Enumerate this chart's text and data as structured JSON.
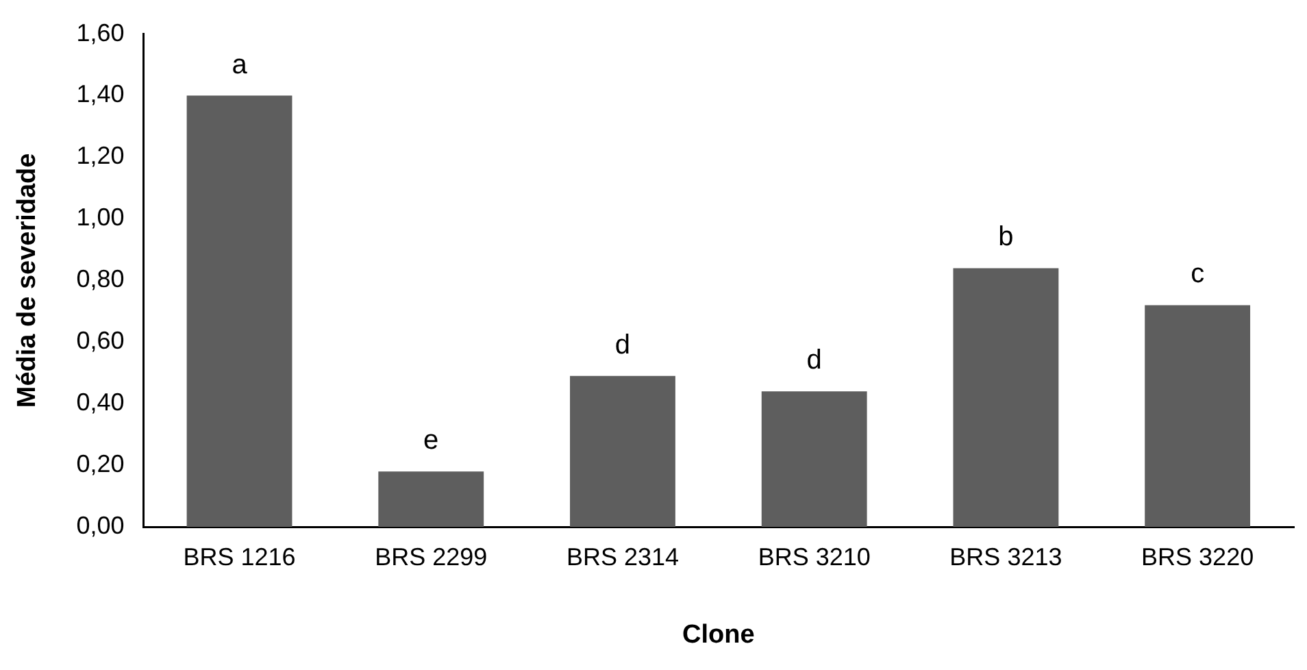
{
  "chart_data": {
    "type": "bar",
    "xlabel": "Clone",
    "ylabel": "Média de severidade",
    "categories": [
      "BRS 1216",
      "BRS 2299",
      "BRS 2314",
      "BRS 3210",
      "BRS 3213",
      "BRS 3220"
    ],
    "values": [
      1.4,
      0.18,
      0.49,
      0.44,
      0.84,
      0.72
    ],
    "color": "#5e5e5e",
    "ylim": [
      0,
      1.6
    ],
    "yticks": [
      {
        "value": 0,
        "label": "0,00"
      },
      {
        "value": 0.2,
        "label": "0,20"
      },
      {
        "value": 0.4,
        "label": "0,40"
      },
      {
        "value": 0.6,
        "label": "0,60"
      },
      {
        "value": 0.8,
        "label": "0,80"
      },
      {
        "value": 1.0,
        "label": "1,00"
      },
      {
        "value": 1.2,
        "label": "1,20"
      },
      {
        "value": 1.4,
        "label": "1,40"
      },
      {
        "value": 1.6,
        "label": "1,60"
      }
    ],
    "grid": false,
    "legend": false,
    "annotations": [
      {
        "text": "a",
        "x": "BRS 1216",
        "y": 1.4
      },
      {
        "text": "e",
        "x": "BRS 2299",
        "y": 0.18
      },
      {
        "text": "d",
        "x": "BRS 2314",
        "y": 0.49
      },
      {
        "text": "d",
        "x": "BRS 3210",
        "y": 0.44
      },
      {
        "text": "b",
        "x": "BRS 3213",
        "y": 0.84
      },
      {
        "text": "c",
        "x": "BRS 3220",
        "y": 0.72
      }
    ]
  }
}
